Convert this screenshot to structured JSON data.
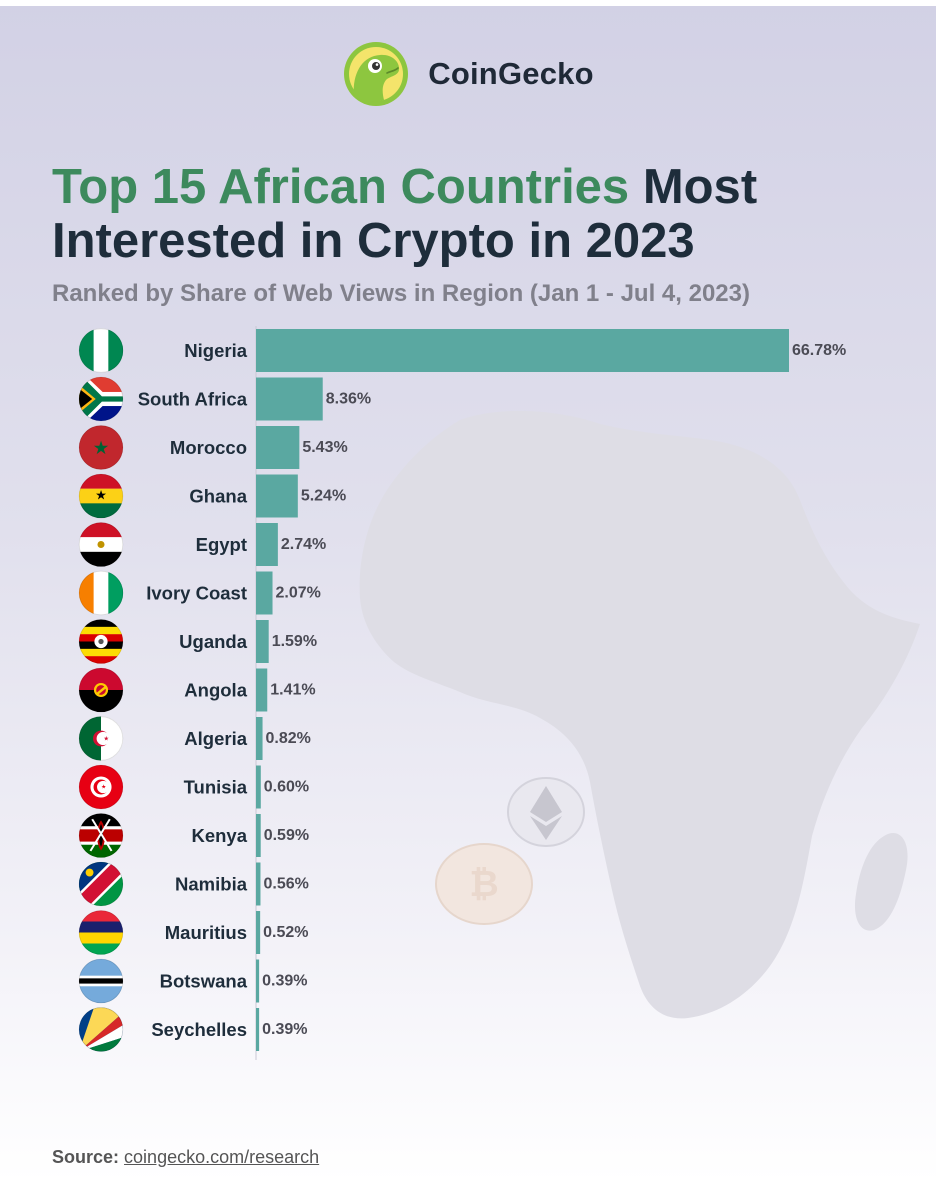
{
  "brand": {
    "name": "CoinGecko"
  },
  "title": {
    "highlight": "Top 15 African Countries",
    "rest": "Most Interested in Crypto in 2023"
  },
  "subtitle": "Ranked by Share of Web Views in Region (Jan 1 - Jul 4, 2023)",
  "source": {
    "label": "Source:",
    "link": "coingecko.com/research"
  },
  "colors": {
    "bar": "#5aa8a1",
    "highlight": "#3d8a5d",
    "title": "#1e2d3b",
    "subtitle": "#80808b",
    "map": "#dedde5"
  },
  "chart_data": {
    "type": "bar",
    "orientation": "horizontal",
    "categories": [
      "Nigeria",
      "South Africa",
      "Morocco",
      "Ghana",
      "Egypt",
      "Ivory Coast",
      "Uganda",
      "Angola",
      "Algeria",
      "Tunisia",
      "Kenya",
      "Namibia",
      "Mauritius",
      "Botswana",
      "Seychelles"
    ],
    "values": [
      66.78,
      8.36,
      5.43,
      5.24,
      2.74,
      2.07,
      1.59,
      1.41,
      0.82,
      0.6,
      0.59,
      0.56,
      0.52,
      0.39,
      0.39
    ],
    "value_labels": [
      "66.78%",
      "8.36%",
      "5.43%",
      "5.24%",
      "2.74%",
      "2.07%",
      "1.59%",
      "1.41%",
      "0.82%",
      "0.60%",
      "0.59%",
      "0.56%",
      "0.52%",
      "0.39%",
      "0.39%"
    ],
    "unit": "%",
    "xlim": [
      0,
      66.78
    ],
    "grid": false,
    "legend": "none"
  }
}
